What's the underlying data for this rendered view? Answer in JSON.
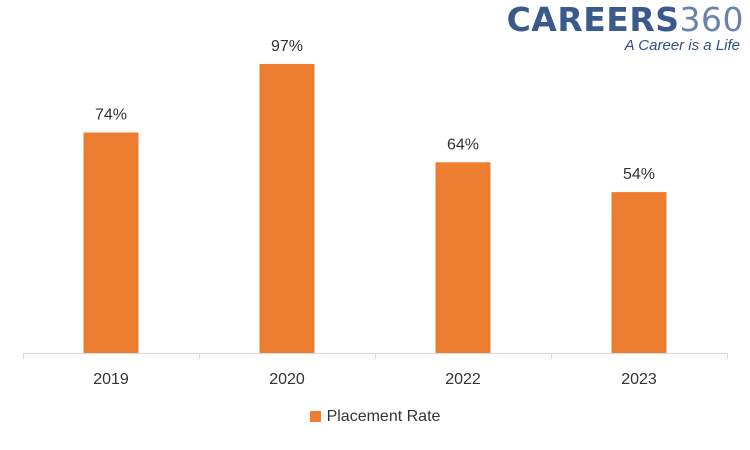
{
  "logo": {
    "word": "CAREERS",
    "number": "360",
    "tagline": "A Career is a Life"
  },
  "colors": {
    "bar": "#ed7d31",
    "axis": "#d9d9d9",
    "text": "#333333"
  },
  "chart_data": {
    "type": "bar",
    "categories": [
      "2019",
      "2020",
      "2022",
      "2023"
    ],
    "series": [
      {
        "name": "Placement Rate",
        "values": [
          74,
          97,
          64,
          54
        ],
        "labels": [
          "74%",
          "97%",
          "64%",
          "54%"
        ]
      }
    ],
    "title": "",
    "xlabel": "",
    "ylabel": "",
    "ylim": [
      0,
      100
    ],
    "grid": false,
    "legend": "bottom"
  }
}
